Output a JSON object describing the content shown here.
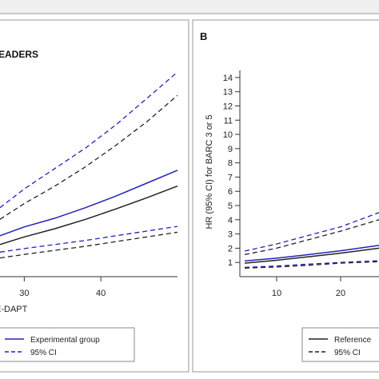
{
  "chart_data": [
    {
      "type": "line",
      "panel_label": "",
      "title": "EADERS",
      "xlabel": "E-DAPT",
      "ylabel": "",
      "x_ticks": [
        30,
        40
      ],
      "xlim": [
        26,
        50
      ],
      "ylim": [
        0.6,
        3.8
      ],
      "series": [
        {
          "name": "Experimental group",
          "role": "estimate",
          "group": "experimental",
          "color": "#2222bb",
          "dash": "solid",
          "x": [
            26,
            30,
            34,
            38,
            42,
            46,
            50
          ],
          "y": [
            1.3,
            1.45,
            1.6,
            1.78,
            1.98,
            2.2,
            2.42
          ]
        },
        {
          "name": "95% CI",
          "role": "ci",
          "group": "experimental",
          "color": "#2222bb",
          "dash": "dashed",
          "x": [
            26,
            30,
            34,
            38,
            42,
            46,
            50
          ],
          "y": [
            1.78,
            2.1,
            2.45,
            2.8,
            3.2,
            3.65,
            4.1
          ]
        },
        {
          "name": "",
          "role": "ci",
          "group": "experimental",
          "color": "#2222bb",
          "dash": "dashed",
          "x": [
            26,
            30,
            34,
            38,
            42,
            46,
            50
          ],
          "y": [
            1.02,
            1.08,
            1.15,
            1.22,
            1.3,
            1.38,
            1.46
          ]
        },
        {
          "name": "",
          "role": "estimate",
          "group": "reference",
          "color": "#222222",
          "dash": "solid",
          "x": [
            26,
            30,
            34,
            38,
            42,
            46,
            50
          ],
          "y": [
            1.15,
            1.28,
            1.42,
            1.58,
            1.76,
            1.95,
            2.15
          ]
        },
        {
          "name": "",
          "role": "ci",
          "group": "reference",
          "color": "#222222",
          "dash": "dashed",
          "x": [
            26,
            30,
            34,
            38,
            42,
            46,
            50
          ],
          "y": [
            1.58,
            1.85,
            2.15,
            2.48,
            2.85,
            3.25,
            3.7
          ]
        },
        {
          "name": "",
          "role": "ci",
          "group": "reference",
          "color": "#222222",
          "dash": "dashed",
          "x": [
            26,
            30,
            34,
            38,
            42,
            46,
            50
          ],
          "y": [
            0.92,
            0.98,
            1.05,
            1.12,
            1.2,
            1.28,
            1.36
          ]
        }
      ],
      "legend": [
        {
          "label": "Experimental group",
          "color": "#2222bb",
          "dash": "solid"
        },
        {
          "label": "95% CI",
          "color": "#2222bb",
          "dash": "dashed"
        }
      ]
    },
    {
      "type": "line",
      "panel_label": "B",
      "title": "",
      "xlabel": "",
      "ylabel": "HR (95% CI) for BARC 3 or 5",
      "x_ticks": [
        10,
        20
      ],
      "y_ticks": [
        1,
        2,
        3,
        4,
        5,
        6,
        7,
        8,
        9,
        10,
        11,
        12,
        13,
        14
      ],
      "xlim": [
        5,
        26
      ],
      "ylim": [
        0,
        14.5
      ],
      "series": [
        {
          "name": "",
          "role": "estimate",
          "group": "experimental",
          "color": "#2222bb",
          "dash": "solid",
          "x": [
            5,
            10,
            15,
            20,
            26
          ],
          "y": [
            1.1,
            1.3,
            1.55,
            1.82,
            2.2
          ]
        },
        {
          "name": "",
          "role": "ci",
          "group": "experimental",
          "color": "#2222bb",
          "dash": "dashed",
          "x": [
            5,
            10,
            15,
            20,
            26
          ],
          "y": [
            1.8,
            2.3,
            2.9,
            3.5,
            4.5
          ]
        },
        {
          "name": "",
          "role": "ci",
          "group": "experimental",
          "color": "#2222bb",
          "dash": "dashed",
          "x": [
            5,
            10,
            15,
            20,
            26
          ],
          "y": [
            0.65,
            0.75,
            0.88,
            1.0,
            1.12
          ]
        },
        {
          "name": "Reference",
          "role": "estimate",
          "group": "reference",
          "color": "#222222",
          "dash": "solid",
          "x": [
            5,
            10,
            15,
            20,
            26
          ],
          "y": [
            0.95,
            1.15,
            1.4,
            1.65,
            2.0
          ]
        },
        {
          "name": "95% CI",
          "role": "ci",
          "group": "reference",
          "color": "#222222",
          "dash": "dashed",
          "x": [
            5,
            10,
            15,
            20,
            26
          ],
          "y": [
            1.55,
            2.0,
            2.6,
            3.2,
            4.0
          ]
        },
        {
          "name": "",
          "role": "ci",
          "group": "reference",
          "color": "#222222",
          "dash": "dashed",
          "x": [
            5,
            10,
            15,
            20,
            26
          ],
          "y": [
            0.6,
            0.68,
            0.8,
            0.95,
            1.05
          ]
        }
      ],
      "legend": [
        {
          "label": "Reference",
          "color": "#222222",
          "dash": "solid"
        },
        {
          "label": "95% CI",
          "color": "#222222",
          "dash": "dashed"
        }
      ]
    }
  ]
}
